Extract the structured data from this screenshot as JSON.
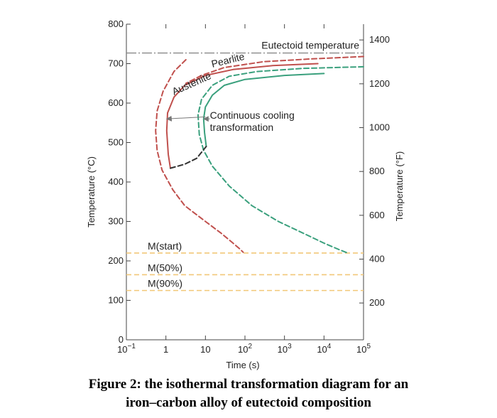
{
  "figure_caption": {
    "line1": "Figure 2: the isothermal transformation diagram for an",
    "line2": "iron–carbon alloy of eutectoid composition"
  },
  "chart_data": {
    "type": "line",
    "title": "",
    "xlabel": "Time (s)",
    "ylabel": "Temperature (°C)",
    "y2label": "Temperature (°F)",
    "x_scale": "log",
    "xlim": [
      0.1,
      100000
    ],
    "ylim": [
      0,
      800
    ],
    "y2lim": [
      32,
      1472
    ],
    "x_ticks": [
      {
        "value": 0.1,
        "base": "10",
        "exp": "−1"
      },
      {
        "value": 1,
        "base": "1",
        "exp": ""
      },
      {
        "value": 10,
        "base": "10",
        "exp": ""
      },
      {
        "value": 100,
        "base": "10",
        "exp": "2"
      },
      {
        "value": 1000,
        "base": "10",
        "exp": "3"
      },
      {
        "value": 10000,
        "base": "10",
        "exp": "4"
      },
      {
        "value": 100000,
        "base": "10",
        "exp": "5"
      }
    ],
    "y_ticks": [
      0,
      100,
      200,
      300,
      400,
      500,
      600,
      700,
      800
    ],
    "y2_ticks": [
      200,
      400,
      600,
      800,
      1000,
      1200,
      1400
    ],
    "grid": false,
    "colors": {
      "isothermal_curve": "#c0504d",
      "cct_curve": "#3aa07d",
      "martensite_line": "#f2c879",
      "cooling_end": "#333333",
      "eutectoid_line": "#888888"
    },
    "eutectoid": {
      "label": "Eutectoid temperature",
      "temp": 727
    },
    "martensite_lines": [
      {
        "label": "M(start)",
        "temp": 220
      },
      {
        "label": "M(50%)",
        "temp": 165
      },
      {
        "label": "M(90%)",
        "temp": 125
      }
    ],
    "series": [
      {
        "style": "dashed",
        "color": "#c0504d",
        "points": [
          [
            3.2,
            710
          ],
          [
            1.6,
            680
          ],
          [
            0.85,
            630
          ],
          [
            0.6,
            580
          ],
          [
            0.55,
            530
          ],
          [
            0.6,
            480
          ],
          [
            0.8,
            430
          ],
          [
            1.5,
            380
          ],
          [
            3,
            340
          ],
          [
            10,
            300
          ],
          [
            25,
            270
          ],
          [
            50,
            245
          ],
          [
            75,
            230
          ],
          [
            90,
            222
          ]
        ]
      },
      {
        "style": "solid",
        "color": "#c0504d",
        "points": [
          [
            7000,
            700
          ],
          [
            500,
            695
          ],
          [
            50,
            685
          ],
          [
            10,
            670
          ],
          [
            3,
            645
          ],
          [
            1.6,
            615
          ],
          [
            1.1,
            575
          ],
          [
            1.05,
            530
          ],
          [
            1.15,
            470
          ],
          [
            1.3,
            435
          ]
        ]
      },
      {
        "style": "dashed",
        "color": "#c0504d",
        "points": [
          [
            100000,
            718
          ],
          [
            5000,
            712
          ],
          [
            300,
            705
          ],
          [
            30,
            690
          ],
          [
            8,
            670
          ],
          [
            3.2,
            650
          ]
        ]
      },
      {
        "style": "solid",
        "color": "#3aa07d",
        "points": [
          [
            10000,
            675
          ],
          [
            1000,
            670
          ],
          [
            100,
            660
          ],
          [
            30,
            645
          ],
          [
            15,
            620
          ],
          [
            10,
            590
          ],
          [
            9,
            560
          ],
          [
            9.5,
            525
          ],
          [
            10.5,
            490
          ]
        ]
      },
      {
        "style": "dashed",
        "color": "#3aa07d",
        "points": [
          [
            100000,
            692
          ],
          [
            3000,
            688
          ],
          [
            200,
            680
          ],
          [
            40,
            668
          ],
          [
            15,
            645
          ],
          [
            8,
            610
          ],
          [
            6.5,
            570
          ],
          [
            7,
            520
          ],
          [
            9,
            480
          ],
          [
            15,
            440
          ],
          [
            40,
            390
          ],
          [
            150,
            340
          ],
          [
            700,
            300
          ],
          [
            3000,
            270
          ],
          [
            10000,
            245
          ],
          [
            25000,
            228
          ],
          [
            40000,
            220
          ]
        ]
      },
      {
        "style": "dashed",
        "color": "#333333",
        "points": [
          [
            1.3,
            435
          ],
          [
            3,
            445
          ],
          [
            6,
            460
          ],
          [
            10.5,
            490
          ]
        ]
      }
    ],
    "annotations": [
      {
        "text": "Austenite",
        "at": [
          1.6,
          620
        ],
        "rotate": -24,
        "color": "#444444"
      },
      {
        "text": "Pearlite",
        "at": [
          15,
          690
        ],
        "rotate": -14,
        "color": "#444444"
      },
      {
        "text": "Continuous cooling",
        "at": [
          13,
          560
        ],
        "color": "#222222"
      },
      {
        "text": "transformation",
        "at": [
          13,
          530
        ],
        "color": "#222222"
      }
    ],
    "arrows": [
      {
        "from": [
          10,
          565
        ],
        "to": [
          1.05,
          560
        ]
      },
      {
        "from": [
          13,
          560
        ],
        "to": [
          9,
          560
        ]
      }
    ]
  }
}
